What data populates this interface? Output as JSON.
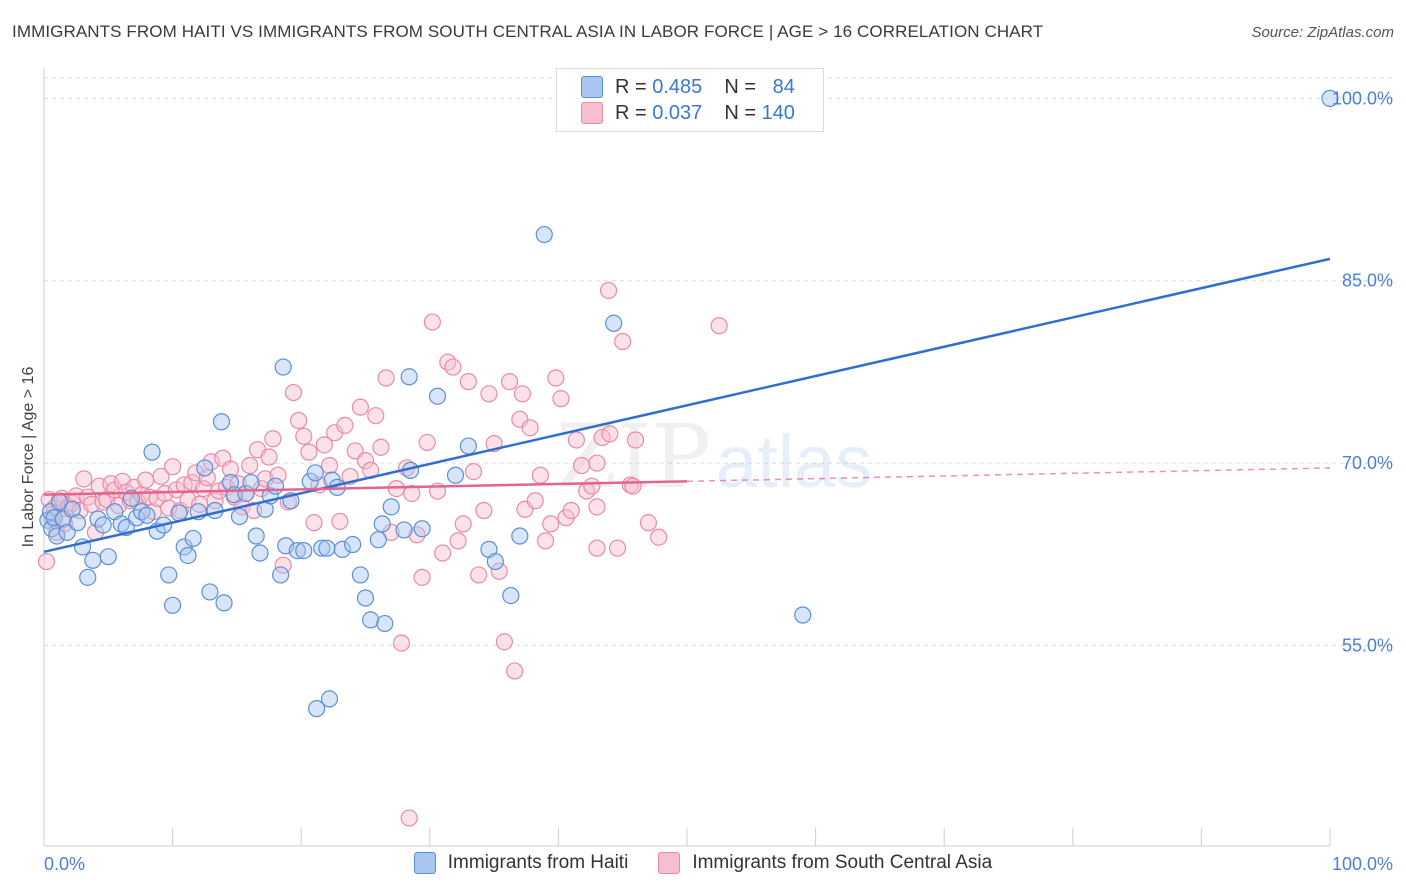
{
  "title": "IMMIGRANTS FROM HAITI VS IMMIGRANTS FROM SOUTH CENTRAL ASIA IN LABOR FORCE | AGE > 16 CORRELATION CHART",
  "source": "Source: ZipAtlas.com",
  "watermark": "ZIPatlas",
  "legend": {
    "r_label": "R =",
    "n_label": "N =",
    "haiti": {
      "r": "0.485",
      "n": "84"
    },
    "sca": {
      "r": "0.037",
      "n": "140"
    }
  },
  "colors": {
    "haiti_fill": "#a8c6f0",
    "haiti_stroke": "#5b8fd6",
    "haiti_line": "#2f6fcf",
    "sca_fill": "#f6bfcf",
    "sca_stroke": "#e98aa8",
    "sca_line": "#e4648c",
    "tick_text": "#4a7fd4",
    "grid": "#dcdcdc"
  },
  "chart_data": {
    "type": "scatter",
    "title": "IMMIGRANTS FROM HAITI VS IMMIGRANTS FROM SOUTH CENTRAL ASIA IN LABOR FORCE | AGE > 16 CORRELATION CHART",
    "xlabel": "",
    "ylabel": "In Labor Force | Age > 16",
    "xlim": [
      0,
      100
    ],
    "ylim": [
      38.5,
      102.5
    ],
    "x_tick_labels": [
      "0.0%",
      "100.0%"
    ],
    "y_ticks": [
      55.0,
      70.0,
      85.0,
      100.0
    ],
    "y_tick_labels": [
      "55.0%",
      "70.0%",
      "85.0%",
      "100.0%"
    ],
    "grid": true,
    "legend_position": "top-center",
    "series": [
      {
        "name": "Immigrants from Haiti",
        "color": "#5b8fd6",
        "trend": {
          "x": [
            0,
            100
          ],
          "y": [
            62.7,
            86.8
          ]
        },
        "points": [
          [
            0.3,
            65.3
          ],
          [
            0.5,
            66.0
          ],
          [
            0.6,
            64.6
          ],
          [
            0.8,
            65.5
          ],
          [
            1.0,
            64.0
          ],
          [
            1.2,
            66.8
          ],
          [
            1.5,
            65.4
          ],
          [
            1.8,
            64.3
          ],
          [
            2.2,
            66.2
          ],
          [
            2.6,
            65.1
          ],
          [
            3.0,
            63.1
          ],
          [
            3.4,
            60.6
          ],
          [
            3.8,
            62.0
          ],
          [
            4.2,
            65.4
          ],
          [
            4.6,
            64.9
          ],
          [
            5.0,
            62.3
          ],
          [
            5.5,
            66.0
          ],
          [
            6.0,
            65.0
          ],
          [
            6.4,
            64.7
          ],
          [
            6.8,
            67.1
          ],
          [
            7.2,
            65.5
          ],
          [
            7.6,
            66.0
          ],
          [
            8.0,
            65.7
          ],
          [
            8.4,
            70.9
          ],
          [
            8.8,
            64.4
          ],
          [
            9.3,
            64.9
          ],
          [
            9.7,
            60.8
          ],
          [
            10.0,
            58.3
          ],
          [
            10.5,
            65.9
          ],
          [
            10.9,
            63.1
          ],
          [
            11.2,
            62.4
          ],
          [
            11.6,
            63.8
          ],
          [
            12.0,
            66.0
          ],
          [
            12.5,
            69.6
          ],
          [
            12.9,
            59.4
          ],
          [
            13.3,
            66.1
          ],
          [
            13.8,
            73.4
          ],
          [
            14.0,
            58.5
          ],
          [
            14.5,
            68.4
          ],
          [
            14.8,
            67.4
          ],
          [
            15.2,
            65.6
          ],
          [
            15.7,
            67.5
          ],
          [
            16.1,
            68.4
          ],
          [
            16.5,
            64.0
          ],
          [
            16.8,
            62.6
          ],
          [
            17.2,
            66.2
          ],
          [
            17.6,
            67.3
          ],
          [
            18.0,
            68.1
          ],
          [
            18.4,
            60.8
          ],
          [
            18.8,
            63.2
          ],
          [
            19.2,
            66.9
          ],
          [
            19.7,
            62.8
          ],
          [
            20.2,
            62.8
          ],
          [
            20.7,
            68.5
          ],
          [
            21.1,
            69.2
          ],
          [
            21.6,
            63.0
          ],
          [
            22.0,
            63.0
          ],
          [
            22.4,
            68.6
          ],
          [
            22.8,
            68.0
          ],
          [
            23.2,
            62.9
          ],
          [
            24.0,
            63.3
          ],
          [
            24.6,
            60.8
          ],
          [
            25.0,
            58.9
          ],
          [
            25.4,
            57.1
          ],
          [
            26.0,
            63.7
          ],
          [
            26.3,
            65.0
          ],
          [
            27.0,
            66.4
          ],
          [
            28.0,
            64.5
          ],
          [
            29.4,
            64.6
          ],
          [
            30.6,
            75.5
          ],
          [
            33.0,
            71.4
          ],
          [
            34.6,
            62.9
          ],
          [
            35.1,
            61.9
          ],
          [
            36.3,
            59.1
          ],
          [
            37.0,
            64.0
          ],
          [
            28.5,
            69.4
          ],
          [
            18.6,
            77.9
          ],
          [
            21.2,
            49.8
          ],
          [
            22.2,
            50.6
          ],
          [
            28.4,
            77.1
          ],
          [
            32.0,
            69.0
          ],
          [
            38.9,
            88.8
          ],
          [
            44.3,
            81.5
          ],
          [
            59.0,
            57.5
          ],
          [
            100.0,
            100.0
          ],
          [
            26.5,
            56.8
          ]
        ]
      },
      {
        "name": "Immigrants from South Central Asia",
        "color": "#e98aa8",
        "trend": {
          "x": [
            0,
            100
          ],
          "y": [
            67.4,
            69.6
          ],
          "solid_until": 50
        },
        "points": [
          [
            0.2,
            61.9
          ],
          [
            0.4,
            67.0
          ],
          [
            0.6,
            65.5
          ],
          [
            0.8,
            66.3
          ],
          [
            1.0,
            64.3
          ],
          [
            1.2,
            66.9
          ],
          [
            1.4,
            67.1
          ],
          [
            1.6,
            65.0
          ],
          [
            1.9,
            66.4
          ],
          [
            2.2,
            66.7
          ],
          [
            2.5,
            67.3
          ],
          [
            2.8,
            66.1
          ],
          [
            3.1,
            68.7
          ],
          [
            3.4,
            67.2
          ],
          [
            3.7,
            66.6
          ],
          [
            4.0,
            64.3
          ],
          [
            4.3,
            68.1
          ],
          [
            4.6,
            66.8
          ],
          [
            4.9,
            67.0
          ],
          [
            5.2,
            68.3
          ],
          [
            5.5,
            67.8
          ],
          [
            5.8,
            66.5
          ],
          [
            6.1,
            68.5
          ],
          [
            6.4,
            67.6
          ],
          [
            6.7,
            66.9
          ],
          [
            7.0,
            68.0
          ],
          [
            7.3,
            66.8
          ],
          [
            7.6,
            67.4
          ],
          [
            7.9,
            68.6
          ],
          [
            8.2,
            67.2
          ],
          [
            8.5,
            66.0
          ],
          [
            8.8,
            67.1
          ],
          [
            9.1,
            68.9
          ],
          [
            9.4,
            67.5
          ],
          [
            9.7,
            66.3
          ],
          [
            10.0,
            69.7
          ],
          [
            10.3,
            67.8
          ],
          [
            10.6,
            66.1
          ],
          [
            10.9,
            68.2
          ],
          [
            11.2,
            67.0
          ],
          [
            11.5,
            68.4
          ],
          [
            11.8,
            69.2
          ],
          [
            12.1,
            66.6
          ],
          [
            12.4,
            67.9
          ],
          [
            12.7,
            68.8
          ],
          [
            13.0,
            70.1
          ],
          [
            13.3,
            66.9
          ],
          [
            13.6,
            67.7
          ],
          [
            13.9,
            70.4
          ],
          [
            14.2,
            68.0
          ],
          [
            14.5,
            69.5
          ],
          [
            14.8,
            67.2
          ],
          [
            15.1,
            68.3
          ],
          [
            15.4,
            66.4
          ],
          [
            15.7,
            67.5
          ],
          [
            16.0,
            69.8
          ],
          [
            16.3,
            66.1
          ],
          [
            16.6,
            71.1
          ],
          [
            16.9,
            67.9
          ],
          [
            17.2,
            68.7
          ],
          [
            17.5,
            70.5
          ],
          [
            17.8,
            72.0
          ],
          [
            18.2,
            69.0
          ],
          [
            18.6,
            61.6
          ],
          [
            19.0,
            66.8
          ],
          [
            19.4,
            75.8
          ],
          [
            19.8,
            73.5
          ],
          [
            20.2,
            72.2
          ],
          [
            20.6,
            70.9
          ],
          [
            21.0,
            65.1
          ],
          [
            21.4,
            68.2
          ],
          [
            21.8,
            71.5
          ],
          [
            22.2,
            69.8
          ],
          [
            22.6,
            72.5
          ],
          [
            23.0,
            65.2
          ],
          [
            23.4,
            73.1
          ],
          [
            23.8,
            68.9
          ],
          [
            24.2,
            71.0
          ],
          [
            24.6,
            74.6
          ],
          [
            25.0,
            70.2
          ],
          [
            25.4,
            69.4
          ],
          [
            25.8,
            73.9
          ],
          [
            26.2,
            71.3
          ],
          [
            26.6,
            77.0
          ],
          [
            27.0,
            64.3
          ],
          [
            27.4,
            67.9
          ],
          [
            27.8,
            55.2
          ],
          [
            28.2,
            69.6
          ],
          [
            28.6,
            67.5
          ],
          [
            29.0,
            64.1
          ],
          [
            29.4,
            60.6
          ],
          [
            29.8,
            71.7
          ],
          [
            30.2,
            81.6
          ],
          [
            30.6,
            67.7
          ],
          [
            31.0,
            62.6
          ],
          [
            31.4,
            78.3
          ],
          [
            31.8,
            77.9
          ],
          [
            32.2,
            63.6
          ],
          [
            32.6,
            65.0
          ],
          [
            33.0,
            76.7
          ],
          [
            33.4,
            69.3
          ],
          [
            33.8,
            60.8
          ],
          [
            34.2,
            66.1
          ],
          [
            34.6,
            75.7
          ],
          [
            35.0,
            71.6
          ],
          [
            35.4,
            61.1
          ],
          [
            35.8,
            55.3
          ],
          [
            36.2,
            76.7
          ],
          [
            36.6,
            52.9
          ],
          [
            37.0,
            73.6
          ],
          [
            37.4,
            66.2
          ],
          [
            37.8,
            72.9
          ],
          [
            38.2,
            66.9
          ],
          [
            38.6,
            69.0
          ],
          [
            39.0,
            63.6
          ],
          [
            39.4,
            65.0
          ],
          [
            39.8,
            77.0
          ],
          [
            40.2,
            75.3
          ],
          [
            40.6,
            65.5
          ],
          [
            41.0,
            66.1
          ],
          [
            41.4,
            71.9
          ],
          [
            41.8,
            69.8
          ],
          [
            42.2,
            67.7
          ],
          [
            42.6,
            68.1
          ],
          [
            43.0,
            66.4
          ],
          [
            43.4,
            72.1
          ],
          [
            44.0,
            72.4
          ],
          [
            44.6,
            63.0
          ],
          [
            45.6,
            68.2
          ],
          [
            46.0,
            71.9
          ],
          [
            43.0,
            63.0
          ],
          [
            37.2,
            75.7
          ],
          [
            45.0,
            80.0
          ],
          [
            43.9,
            84.2
          ],
          [
            45.8,
            68.1
          ],
          [
            47.0,
            65.1
          ],
          [
            47.8,
            63.9
          ],
          [
            52.5,
            81.3
          ],
          [
            43.0,
            70.0
          ],
          [
            28.4,
            40.8
          ]
        ]
      }
    ]
  }
}
